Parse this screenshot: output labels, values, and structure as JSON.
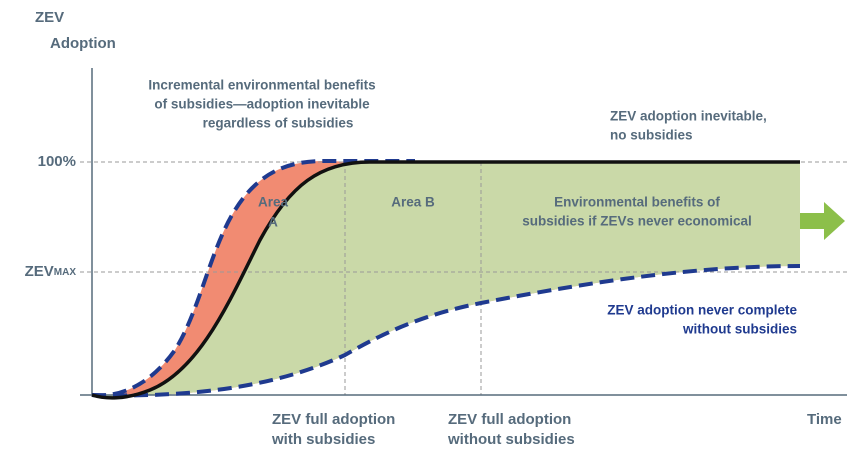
{
  "y_axis": {
    "label": [
      "ZEV",
      "Adoption"
    ],
    "ticks": [
      {
        "text": "100%"
      },
      {
        "text": "ZEV",
        "subscript": "MAX"
      }
    ]
  },
  "x_axis": {
    "label": "Time",
    "markers": [
      [
        "ZEV full adoption",
        "with subsidies"
      ],
      [
        "ZEV full adoption",
        "without subsidies"
      ]
    ]
  },
  "annotations": {
    "incremental": [
      "Incremental environmental benefits",
      "of subsidies—adoption inevitable",
      "regardless of subsidies"
    ],
    "inevitable": [
      "ZEV adoption inevitable,",
      "no subsidies"
    ],
    "area_a": [
      "Area",
      "A"
    ],
    "area_b": "Area B",
    "never_economical": [
      "Environmental benefits of",
      "subsidies if ZEVs never economical"
    ],
    "never_complete": [
      "ZEV adoption never complete",
      "without subsidies"
    ]
  }
}
